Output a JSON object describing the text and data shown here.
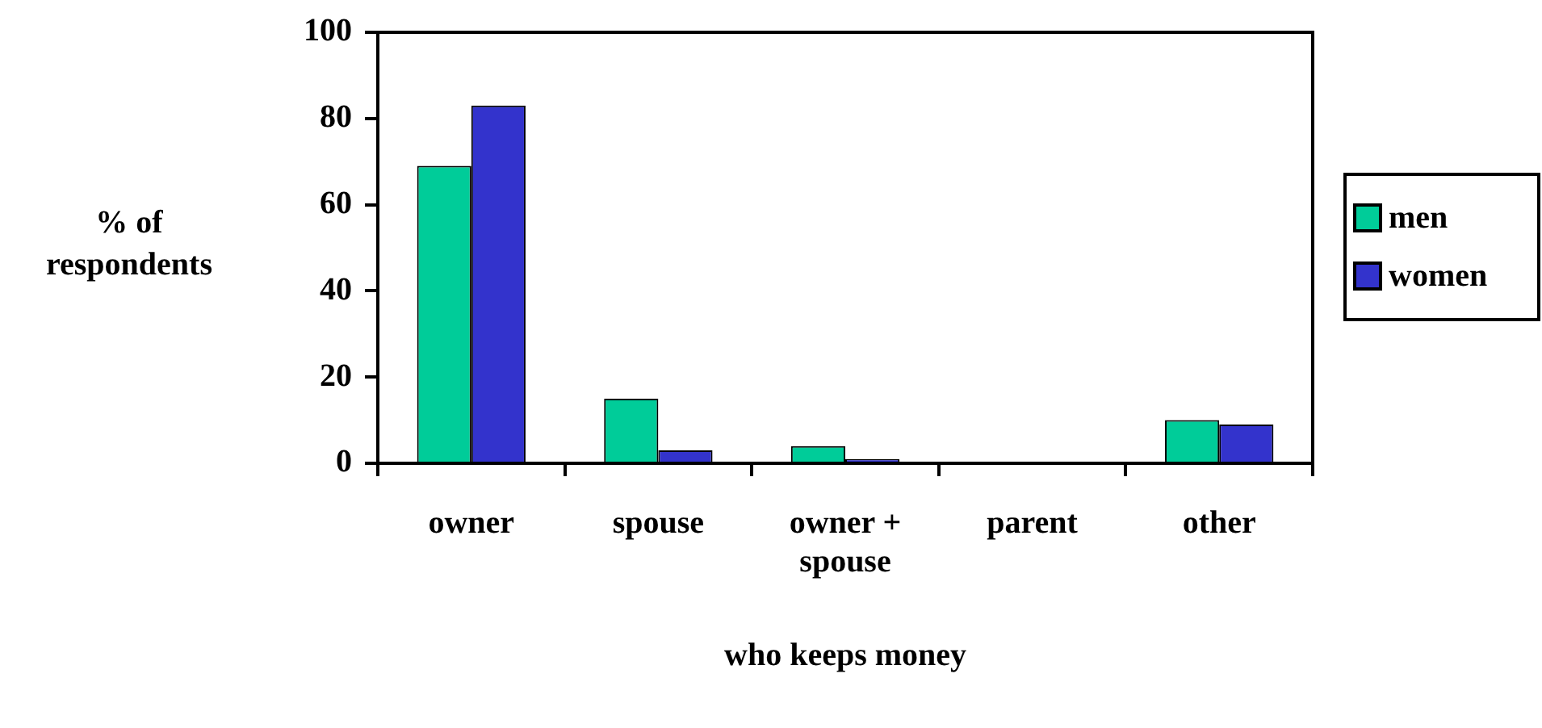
{
  "chart_data": {
    "type": "bar",
    "xlabel": "who keeps money",
    "ylabel": "% of respondents",
    "categories": [
      "owner",
      "spouse",
      "owner + spouse",
      "parent",
      "other"
    ],
    "series": [
      {
        "name": "men",
        "color": "#00cc99",
        "values": [
          69,
          15,
          4,
          0,
          10
        ]
      },
      {
        "name": "women",
        "color": "#3333cc",
        "values": [
          83,
          3,
          1,
          0,
          9
        ]
      }
    ],
    "ylim": [
      0,
      100
    ],
    "yticks": [
      0,
      20,
      40,
      60,
      80,
      100
    ],
    "grid": false,
    "legend": "right"
  }
}
